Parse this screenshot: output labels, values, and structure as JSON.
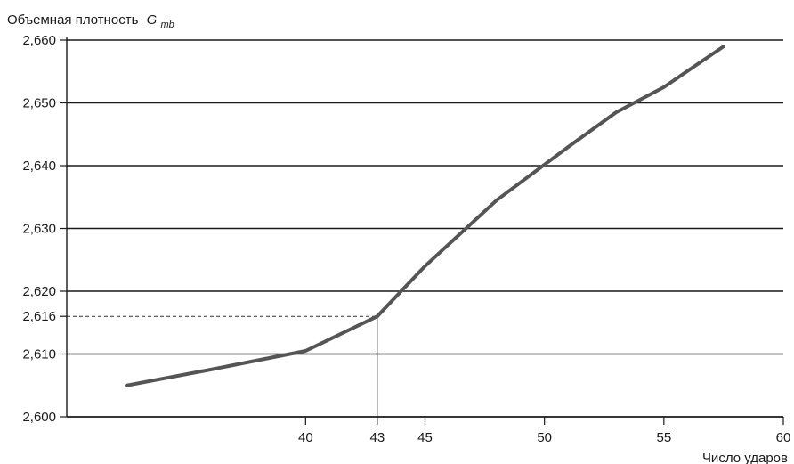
{
  "chart_data": {
    "type": "line",
    "title": "Объемная плотность",
    "title_symbol": "G",
    "title_subscript": "mb",
    "xlabel": "Число ударов",
    "ylabel": "",
    "xlim": [
      30,
      60
    ],
    "ylim": [
      2.6,
      2.66
    ],
    "x_ticks": [
      40,
      43,
      45,
      50,
      55,
      60
    ],
    "x_tick_labels": [
      "40",
      "43",
      "45",
      "50",
      "55",
      "60"
    ],
    "y_ticks": [
      2.6,
      2.61,
      2.616,
      2.62,
      2.63,
      2.64,
      2.65,
      2.66
    ],
    "y_tick_labels": [
      "2,600",
      "2,610",
      "2,616",
      "2,620",
      "2,630",
      "2,640",
      "2,650",
      "2,660"
    ],
    "grid": true,
    "series": [
      {
        "x": [
          32.5,
          36,
          40,
          43,
          45,
          48,
          51,
          53,
          55,
          57.5
        ],
        "y": [
          2.605,
          2.6075,
          2.6105,
          2.616,
          2.624,
          2.6345,
          2.643,
          2.6485,
          2.6525,
          2.659
        ]
      }
    ],
    "reference": {
      "x": 43,
      "y": 2.616
    },
    "colors": {
      "line": "#555555",
      "grid": "#1a1a1a",
      "reference": "#333333"
    }
  }
}
